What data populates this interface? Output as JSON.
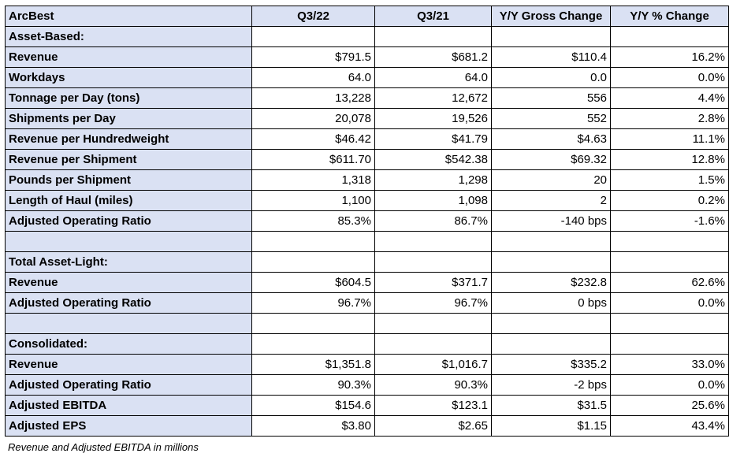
{
  "header": {
    "company": "ArcBest",
    "col1": "Q3/22",
    "col2": "Q3/21",
    "col3": "Y/Y Gross Change",
    "col4": "Y/Y % Change"
  },
  "rows": [
    {
      "label": "Asset-Based:",
      "values": [
        "",
        "",
        "",
        ""
      ]
    },
    {
      "label": "Revenue",
      "values": [
        "$791.5",
        "$681.2",
        "$110.4",
        "16.2%"
      ]
    },
    {
      "label": "Workdays",
      "values": [
        "64.0",
        "64.0",
        "0.0",
        "0.0%"
      ]
    },
    {
      "label": "Tonnage per Day (tons)",
      "values": [
        "13,228",
        "12,672",
        "556",
        "4.4%"
      ]
    },
    {
      "label": "Shipments per Day",
      "values": [
        "20,078",
        "19,526",
        "552",
        "2.8%"
      ]
    },
    {
      "label": "Revenue per Hundredweight",
      "values": [
        "$46.42",
        "$41.79",
        "$4.63",
        "11.1%"
      ]
    },
    {
      "label": "Revenue per Shipment",
      "values": [
        "$611.70",
        "$542.38",
        "$69.32",
        "12.8%"
      ]
    },
    {
      "label": "Pounds per Shipment",
      "values": [
        "1,318",
        "1,298",
        "20",
        "1.5%"
      ]
    },
    {
      "label": "Length of Haul (miles)",
      "values": [
        "1,100",
        "1,098",
        "2",
        "0.2%"
      ]
    },
    {
      "label": "Adjusted Operating Ratio",
      "values": [
        "85.3%",
        "86.7%",
        "-140 bps",
        "-1.6%"
      ]
    },
    {
      "label": "",
      "values": [
        "",
        "",
        "",
        ""
      ]
    },
    {
      "label": "Total Asset-Light:",
      "values": [
        "",
        "",
        "",
        ""
      ]
    },
    {
      "label": "Revenue",
      "values": [
        "$604.5",
        "$371.7",
        "$232.8",
        "62.6%"
      ]
    },
    {
      "label": "Adjusted Operating Ratio",
      "values": [
        "96.7%",
        "96.7%",
        "0 bps",
        "0.0%"
      ]
    },
    {
      "label": "",
      "values": [
        "",
        "",
        "",
        ""
      ]
    },
    {
      "label": "Consolidated:",
      "values": [
        "",
        "",
        "",
        ""
      ]
    },
    {
      "label": "Revenue",
      "values": [
        "$1,351.8",
        "$1,016.7",
        "$335.2",
        "33.0%"
      ]
    },
    {
      "label": "Adjusted Operating Ratio",
      "values": [
        "90.3%",
        "90.3%",
        "-2 bps",
        "0.0%"
      ]
    },
    {
      "label": "Adjusted EBITDA",
      "values": [
        "$154.6",
        "$123.1",
        "$31.5",
        "25.6%"
      ]
    },
    {
      "label": "Adjusted EPS",
      "values": [
        "$3.80",
        "$2.65",
        "$1.15",
        "43.4%"
      ]
    }
  ],
  "footnote": "Revenue and Adjusted EBITDA in millions"
}
